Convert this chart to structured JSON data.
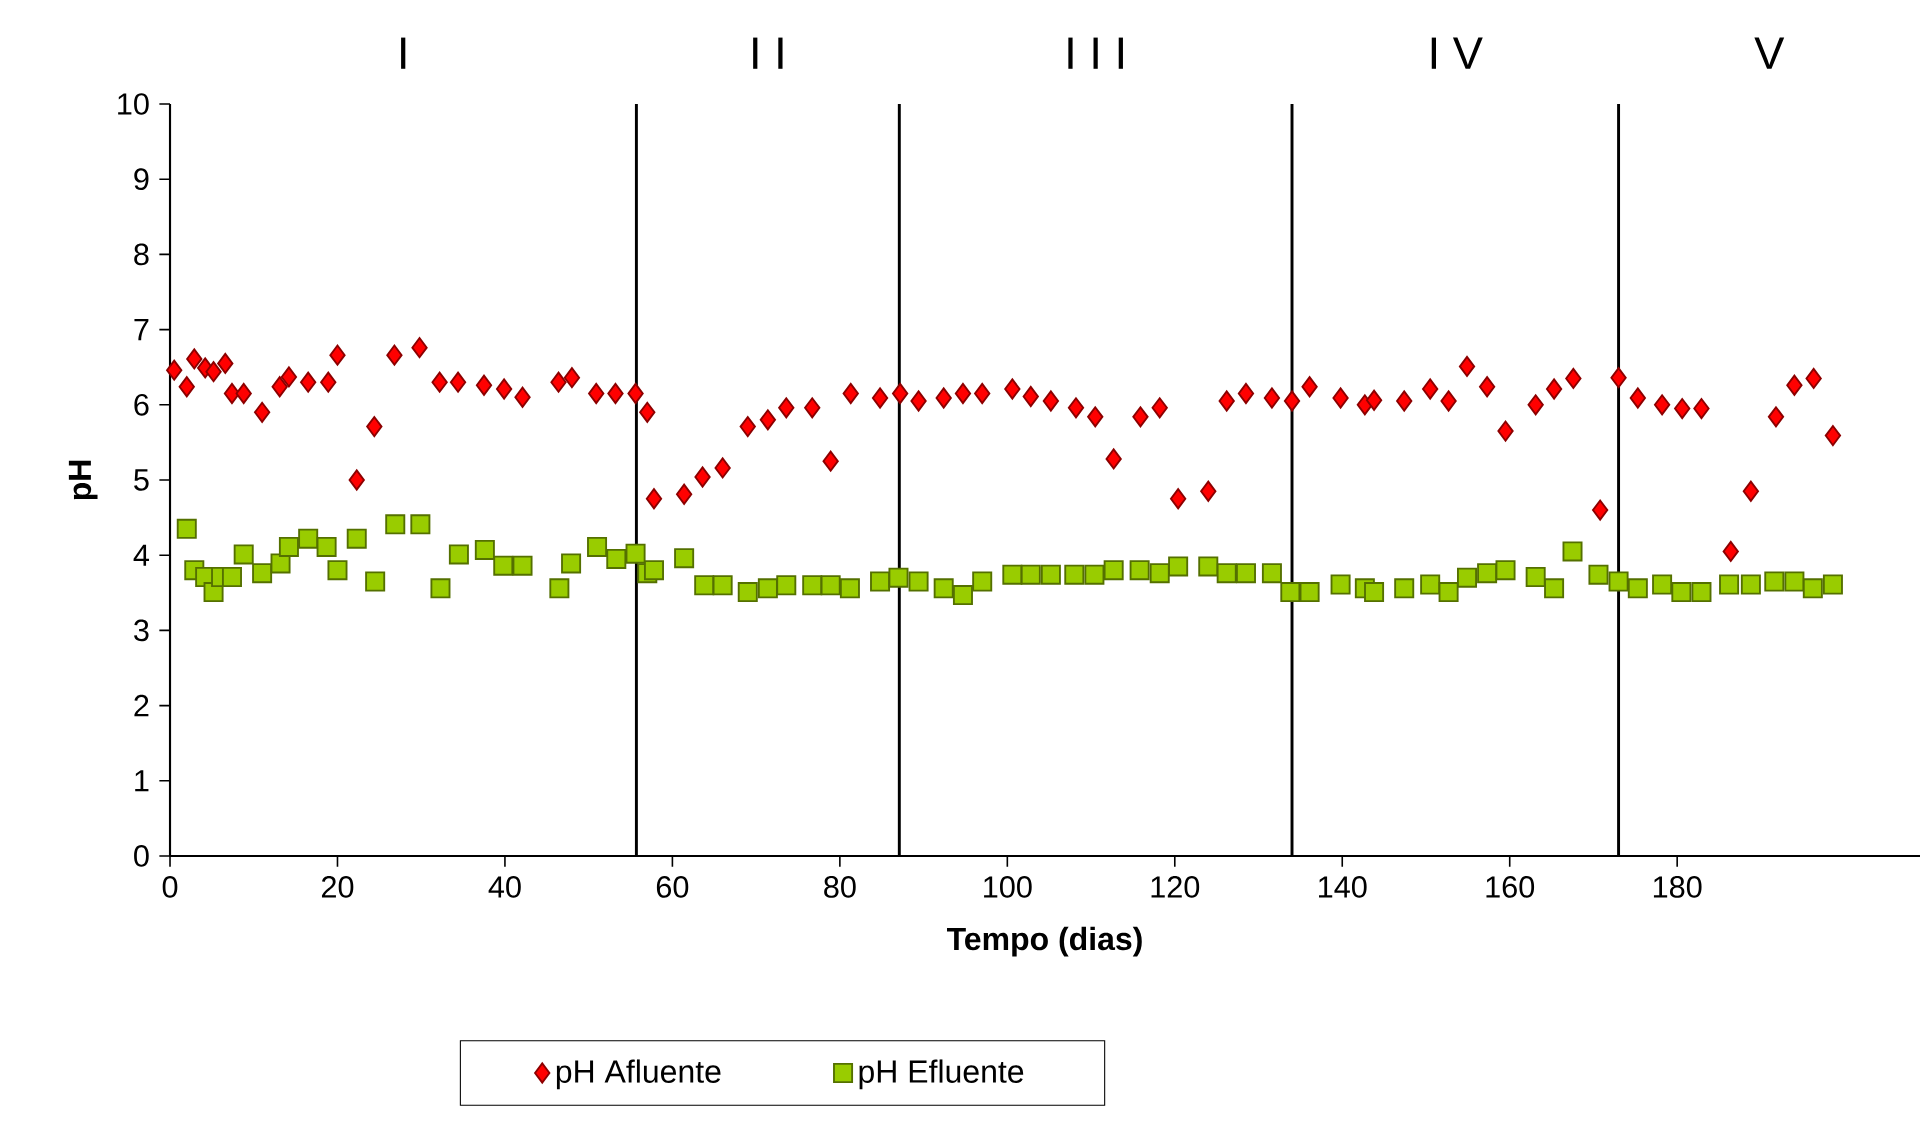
{
  "chart_data": {
    "type": "scatter",
    "xlabel": "Tempo (dias)",
    "ylabel": "pH",
    "xlim": [
      0,
      209
    ],
    "xticks": [
      0,
      20,
      40,
      60,
      80,
      100,
      120,
      140,
      160,
      180
    ],
    "ylim": [
      0,
      10
    ],
    "yticks": [
      0,
      1,
      2,
      3,
      4,
      5,
      6,
      7,
      8,
      9,
      10
    ],
    "legend": "bottom",
    "grid": false,
    "ref_lines": [
      {
        "axis": "x",
        "value": 55.7,
        "color": "#000000"
      },
      {
        "axis": "x",
        "value": 87.1,
        "color": "#000000"
      },
      {
        "axis": "x",
        "value": 134,
        "color": "#000000"
      },
      {
        "axis": "x",
        "value": 173,
        "color": "#000000"
      }
    ],
    "annotations": [
      "I",
      "I I",
      "I I I",
      "I V",
      "V"
    ],
    "series": [
      {
        "name": "pH Afluente",
        "color": "#ff0000",
        "marker": "diamond",
        "x": [
          0.5,
          2,
          2.9,
          4.2,
          5.2,
          6.6,
          7.4,
          8.8,
          11,
          13.1,
          14.2,
          16.5,
          18.9,
          20,
          22.3,
          24.4,
          26.8,
          29.8,
          32.2,
          34.4,
          37.5,
          39.9,
          42.1,
          46.4,
          48,
          50.9,
          53.2,
          55.6,
          57,
          57.8,
          61.4,
          63.6,
          66,
          69,
          71.4,
          73.6,
          76.7,
          78.9,
          81.3,
          84.8,
          87.2,
          89.4,
          92.4,
          94.7,
          97,
          100.6,
          102.8,
          105.2,
          108.2,
          110.5,
          112.7,
          115.9,
          118.2,
          120.4,
          124,
          126.2,
          128.5,
          131.6,
          134,
          136.1,
          139.8,
          142.7,
          143.8,
          147.4,
          150.5,
          152.7,
          154.9,
          157.3,
          159.5,
          163.1,
          165.3,
          167.6,
          170.8,
          173,
          175.3,
          178.2,
          180.6,
          182.9,
          186.4,
          188.8,
          191.8,
          194,
          196.3,
          198.6
        ],
        "values": [
          6.46,
          6.24,
          6.61,
          6.49,
          6.44,
          6.55,
          6.15,
          6.15,
          5.9,
          6.24,
          6.37,
          6.3,
          6.3,
          6.66,
          5.0,
          5.71,
          6.66,
          6.76,
          6.3,
          6.3,
          6.26,
          6.21,
          6.1,
          6.3,
          6.36,
          6.15,
          6.15,
          6.15,
          5.9,
          4.75,
          4.81,
          5.04,
          5.16,
          5.71,
          5.8,
          5.96,
          5.96,
          5.25,
          6.15,
          6.09,
          6.15,
          6.05,
          6.09,
          6.15,
          6.15,
          6.21,
          6.11,
          6.05,
          5.96,
          5.84,
          5.28,
          5.84,
          5.96,
          4.75,
          4.85,
          6.05,
          6.15,
          6.09,
          6.05,
          6.24,
          6.09,
          6.0,
          6.06,
          6.05,
          6.21,
          6.05,
          6.51,
          6.24,
          5.65,
          6.0,
          6.21,
          6.35,
          4.6,
          6.36,
          6.09,
          6.0,
          5.95,
          5.95,
          4.05,
          4.85,
          5.84,
          6.26,
          6.35,
          5.59
        ]
      },
      {
        "name": "pH Efluente",
        "color": "#99cc00",
        "marker": "square",
        "x": [
          2,
          2.9,
          4.2,
          5.2,
          6.1,
          7.4,
          8.8,
          11,
          13.2,
          14.2,
          16.5,
          18.7,
          20,
          22.3,
          24.5,
          26.9,
          29.9,
          32.3,
          34.5,
          37.6,
          39.8,
          42.1,
          46.5,
          47.9,
          51,
          53.3,
          55.6,
          57,
          57.8,
          61.4,
          63.8,
          66,
          69,
          71.4,
          73.6,
          76.7,
          78.9,
          81.2,
          84.8,
          87,
          89.4,
          92.4,
          94.7,
          97,
          100.6,
          102.8,
          105.2,
          108,
          110.4,
          112.7,
          115.8,
          118.2,
          120.4,
          124,
          126.2,
          128.5,
          131.6,
          133.8,
          136.1,
          139.8,
          142.7,
          143.8,
          147.4,
          150.5,
          152.7,
          154.9,
          157.3,
          159.5,
          163.1,
          165.3,
          167.5,
          170.6,
          173,
          175.3,
          178.2,
          180.5,
          182.9,
          186.2,
          188.8,
          191.6,
          194,
          196.2,
          198.6
        ],
        "values": [
          4.35,
          3.8,
          3.71,
          3.51,
          3.71,
          3.71,
          4.01,
          3.76,
          3.89,
          4.11,
          4.22,
          4.11,
          3.8,
          4.22,
          3.65,
          4.41,
          4.41,
          3.56,
          4.01,
          4.07,
          3.86,
          3.86,
          3.56,
          3.89,
          4.11,
          3.95,
          4.02,
          3.76,
          3.8,
          3.96,
          3.6,
          3.6,
          3.51,
          3.56,
          3.6,
          3.6,
          3.6,
          3.56,
          3.65,
          3.7,
          3.65,
          3.56,
          3.47,
          3.65,
          3.74,
          3.74,
          3.74,
          3.74,
          3.74,
          3.8,
          3.8,
          3.76,
          3.85,
          3.85,
          3.76,
          3.76,
          3.76,
          3.51,
          3.51,
          3.61,
          3.56,
          3.51,
          3.56,
          3.61,
          3.51,
          3.7,
          3.76,
          3.8,
          3.71,
          3.56,
          4.05,
          3.74,
          3.65,
          3.56,
          3.61,
          3.51,
          3.51,
          3.61,
          3.61,
          3.65,
          3.65,
          3.56,
          3.61
        ]
      }
    ]
  }
}
